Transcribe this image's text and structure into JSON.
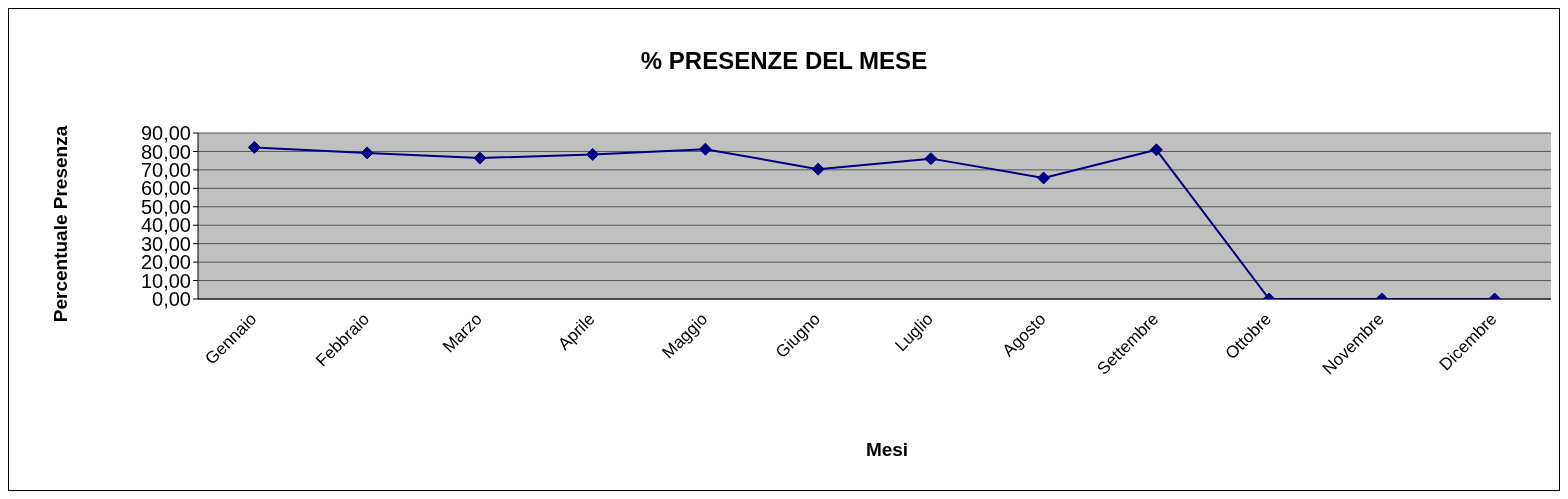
{
  "chart_data": {
    "type": "line",
    "title": "% PRESENZE DEL MESE",
    "xlabel": "Mesi",
    "ylabel": "Percentuale Presenza",
    "categories": [
      "Gennaio",
      "Febbraio",
      "Marzo",
      "Aprile",
      "Maggio",
      "Giugno",
      "Luglio",
      "Agosto",
      "Settembre",
      "Ottobre",
      "Novembre",
      "Dicembre"
    ],
    "series": [
      {
        "color": "#000080",
        "values": [
          82.2,
          79.2,
          76.4,
          78.4,
          81.2,
          70.4,
          76.1,
          65.6,
          80.9,
          0,
          0,
          0
        ]
      }
    ],
    "ylim": [
      0,
      90
    ],
    "yticks": [
      {
        "value": 0,
        "label": "0,00"
      },
      {
        "value": 10,
        "label": "10,00"
      },
      {
        "value": 20,
        "label": "20,00"
      },
      {
        "value": 30,
        "label": "30,00"
      },
      {
        "value": 40,
        "label": "40,00"
      },
      {
        "value": 50,
        "label": "50,00"
      },
      {
        "value": 60,
        "label": "60,00"
      },
      {
        "value": 70,
        "label": "70,00"
      },
      {
        "value": 80,
        "label": "80,00"
      },
      {
        "value": 90,
        "label": "90,00"
      }
    ],
    "grid": "y",
    "legend": false,
    "marker": "diamond",
    "line_style": "solid"
  }
}
